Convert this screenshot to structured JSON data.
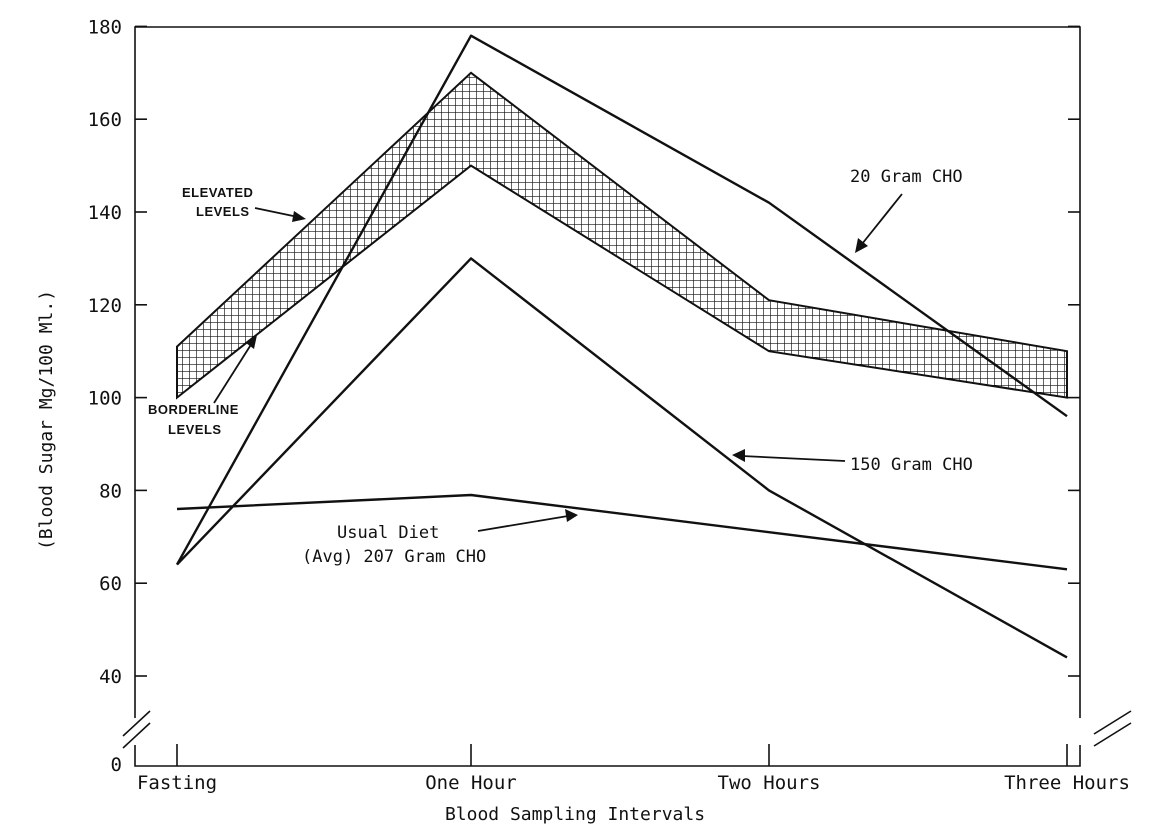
{
  "chart_data": {
    "type": "line",
    "xlabel": "Blood Sampling Intervals",
    "ylabel": "(Blood Sugar Mg/100 Ml.)",
    "categories": [
      "Fasting",
      "One Hour",
      "Two Hours",
      "Three Hours"
    ],
    "y_ticks": [
      0,
      40,
      60,
      80,
      100,
      120,
      140,
      160,
      180
    ],
    "ylim": [
      0,
      180
    ],
    "axis_break": true,
    "series": [
      {
        "name": "20 Gram CHO",
        "values": [
          64,
          178,
          142,
          96
        ]
      },
      {
        "name": "150 Gram CHO",
        "values": [
          64,
          130,
          80,
          44
        ]
      },
      {
        "name": "Usual Diet (Avg) 207 Gram CHO",
        "values": [
          76,
          79,
          71,
          63
        ]
      }
    ],
    "bands": [
      {
        "name": "Elevated / Borderline levels",
        "upper": [
          111,
          170,
          121,
          110
        ],
        "lower": [
          100,
          150,
          110,
          100
        ]
      }
    ],
    "annotations": {
      "elevated": [
        "ELEVATED",
        "LEVELS"
      ],
      "borderline": [
        "BORDERLINE",
        "LEVELS"
      ],
      "cho20": "20 Gram CHO",
      "cho150": "150 Gram CHO",
      "usual": [
        "Usual Diet",
        "(Avg) 207 Gram CHO"
      ]
    }
  }
}
